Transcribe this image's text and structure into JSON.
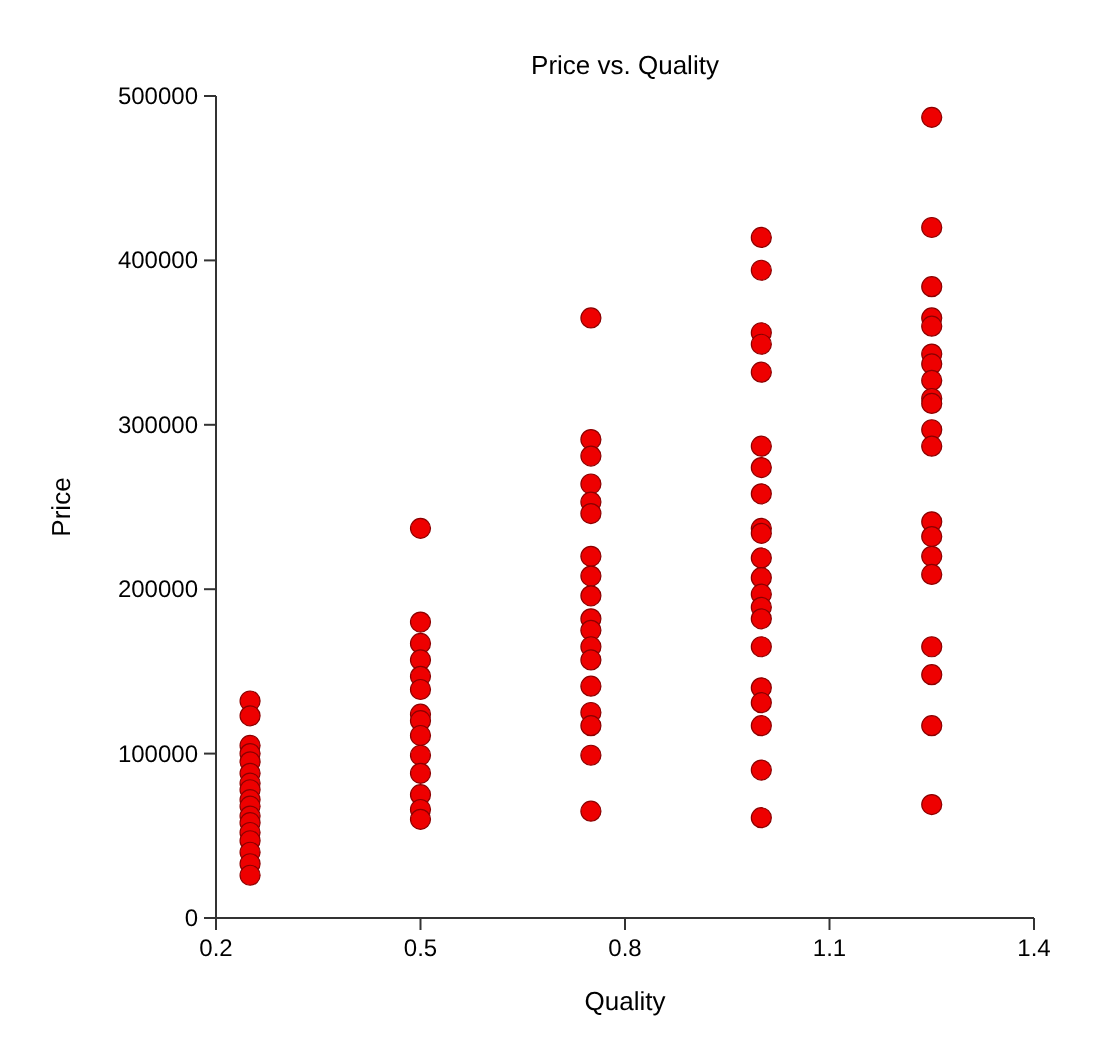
{
  "chart_data": {
    "type": "scatter",
    "title": "Price vs. Quality",
    "xlabel": "Quality",
    "ylabel": "Price",
    "xlim": [
      0.2,
      1.4
    ],
    "ylim": [
      0,
      500000
    ],
    "xticks": [
      0.2,
      0.5,
      0.8,
      1.1,
      1.4
    ],
    "yticks": [
      0,
      100000,
      200000,
      300000,
      400000,
      500000
    ],
    "marker": "circle",
    "series": [
      {
        "color": "#ee0000",
        "x": [
          0.25,
          0.25,
          0.25,
          0.25,
          0.25,
          0.25,
          0.25,
          0.25,
          0.25,
          0.25,
          0.25,
          0.25,
          0.25,
          0.25,
          0.25,
          0.25,
          0.25,
          0.5,
          0.5,
          0.5,
          0.5,
          0.5,
          0.5,
          0.5,
          0.5,
          0.5,
          0.5,
          0.5,
          0.5,
          0.5,
          0.5,
          0.75,
          0.75,
          0.75,
          0.75,
          0.75,
          0.75,
          0.75,
          0.75,
          0.75,
          0.75,
          0.75,
          0.75,
          0.75,
          0.75,
          0.75,
          0.75,
          0.75,
          0.75,
          1.0,
          1.0,
          1.0,
          1.0,
          1.0,
          1.0,
          1.0,
          1.0,
          1.0,
          1.0,
          1.0,
          1.0,
          1.0,
          1.0,
          1.0,
          1.0,
          1.0,
          1.0,
          1.0,
          1.0,
          1.0,
          1.25,
          1.25,
          1.25,
          1.25,
          1.25,
          1.25,
          1.25,
          1.25,
          1.25,
          1.25,
          1.25,
          1.25,
          1.25,
          1.25,
          1.25,
          1.25,
          1.25,
          1.25,
          1.25,
          1.25
        ],
        "values": [
          132000,
          123000,
          105000,
          100000,
          95000,
          88000,
          82000,
          78000,
          72000,
          68000,
          62000,
          58000,
          52000,
          47000,
          40000,
          33000,
          26000,
          237000,
          180000,
          167000,
          157000,
          147000,
          139000,
          124000,
          120000,
          111000,
          99000,
          88000,
          75000,
          66000,
          60000,
          365000,
          291000,
          281000,
          264000,
          253000,
          246000,
          220000,
          208000,
          196000,
          182000,
          175000,
          165000,
          157000,
          141000,
          125000,
          117000,
          99000,
          65000,
          414000,
          394000,
          356000,
          349000,
          332000,
          287000,
          274000,
          258000,
          237000,
          234000,
          219000,
          207000,
          197000,
          189000,
          182000,
          165000,
          140000,
          131000,
          117000,
          90000,
          61000,
          487000,
          420000,
          384000,
          365000,
          360000,
          343000,
          337000,
          327000,
          316000,
          313000,
          297000,
          287000,
          241000,
          232000,
          220000,
          209000,
          165000,
          148000,
          117000,
          69000
        ]
      }
    ]
  }
}
